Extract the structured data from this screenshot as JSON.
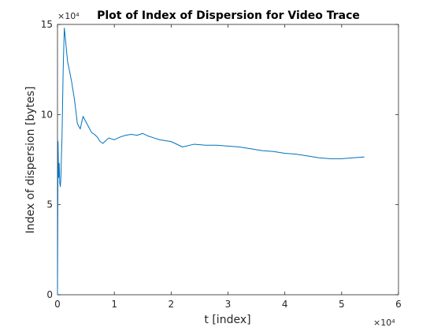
{
  "chart_data": {
    "type": "line",
    "title": "Plot of Index of Dispersion for Video Trace",
    "xlabel": "t [index]",
    "ylabel": "Index of dispersion [bytes]",
    "xlim": [
      0,
      6
    ],
    "ylim": [
      0,
      15
    ],
    "x_multiplier": "×10⁴",
    "y_multiplier": "×10⁴",
    "xticks": [
      0,
      1,
      2,
      3,
      4,
      5,
      6
    ],
    "yticks": [
      0,
      5,
      10,
      15
    ],
    "grid": false,
    "colors": {
      "line": "#0072BD",
      "axes": "#262626"
    },
    "series": [
      {
        "x": [
          0,
          0.01,
          0.02,
          0.03,
          0.04,
          0.05,
          0.06,
          0.07,
          0.08,
          0.1,
          0.12,
          0.14,
          0.16,
          0.18,
          0.2,
          0.25,
          0.3,
          0.35,
          0.4,
          0.45,
          0.5,
          0.55,
          0.6,
          0.65,
          0.7,
          0.75,
          0.8,
          0.85,
          0.9,
          1.0,
          1.1,
          1.2,
          1.3,
          1.4,
          1.5,
          1.6,
          1.7,
          1.8,
          1.9,
          2.0,
          2.2,
          2.4,
          2.6,
          2.8,
          3.0,
          3.2,
          3.4,
          3.6,
          3.8,
          4.0,
          4.2,
          4.4,
          4.6,
          4.8,
          5.0,
          5.2,
          5.4
        ],
        "y": [
          0,
          8.5,
          6.5,
          7.3,
          6.2,
          6.0,
          6.5,
          7.8,
          8.8,
          12.5,
          14.8,
          14.2,
          13.5,
          12.9,
          12.6,
          11.8,
          10.8,
          9.5,
          9.2,
          9.9,
          9.6,
          9.3,
          9.0,
          8.9,
          8.75,
          8.5,
          8.4,
          8.55,
          8.7,
          8.6,
          8.75,
          8.85,
          8.9,
          8.85,
          8.95,
          8.8,
          8.7,
          8.6,
          8.55,
          8.5,
          8.2,
          8.35,
          8.3,
          8.3,
          8.25,
          8.2,
          8.1,
          8.0,
          7.95,
          7.85,
          7.8,
          7.7,
          7.6,
          7.55,
          7.55,
          7.6,
          7.65
        ]
      }
    ]
  }
}
